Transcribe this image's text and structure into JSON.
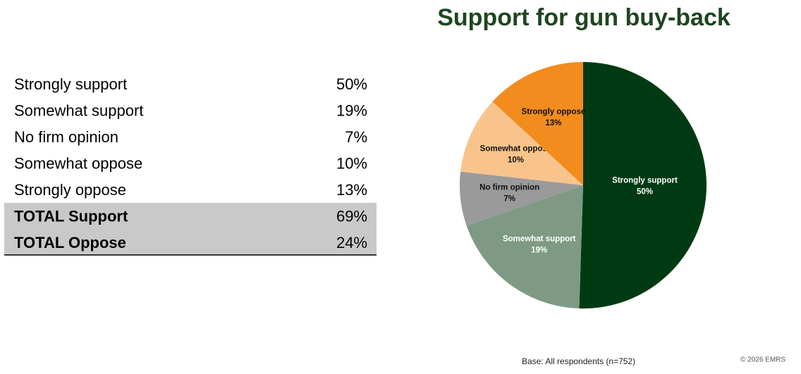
{
  "table": {
    "rows": [
      [
        "Strongly support",
        "50%"
      ],
      [
        "Somewhat support",
        "19%"
      ],
      [
        "No firm opinion",
        "7%"
      ],
      [
        "Somewhat oppose",
        "10%"
      ],
      [
        "Strongly oppose",
        "13%"
      ]
    ],
    "totals": [
      [
        "TOTAL Support",
        "69%"
      ],
      [
        "TOTAL Oppose",
        "24%"
      ]
    ]
  },
  "chart_data": {
    "type": "pie",
    "title": "Support for gun buy-back",
    "categories": [
      "Strongly support",
      "Somewhat support",
      "No firm opinion",
      "Somewhat oppose",
      "Strongly oppose"
    ],
    "values": [
      50,
      19,
      7,
      10,
      13
    ],
    "value_labels": [
      "50%",
      "19%",
      "7%",
      "10%",
      "13%"
    ],
    "colors": [
      "#003a12",
      "#7e9a84",
      "#9a9a9a",
      "#f9c48c",
      "#f28c1e"
    ],
    "start": "top",
    "direction": "clockwise"
  },
  "footer": {
    "base": "Base:  All respondents (n=752)",
    "copyright": "© 2026 EMRS"
  }
}
